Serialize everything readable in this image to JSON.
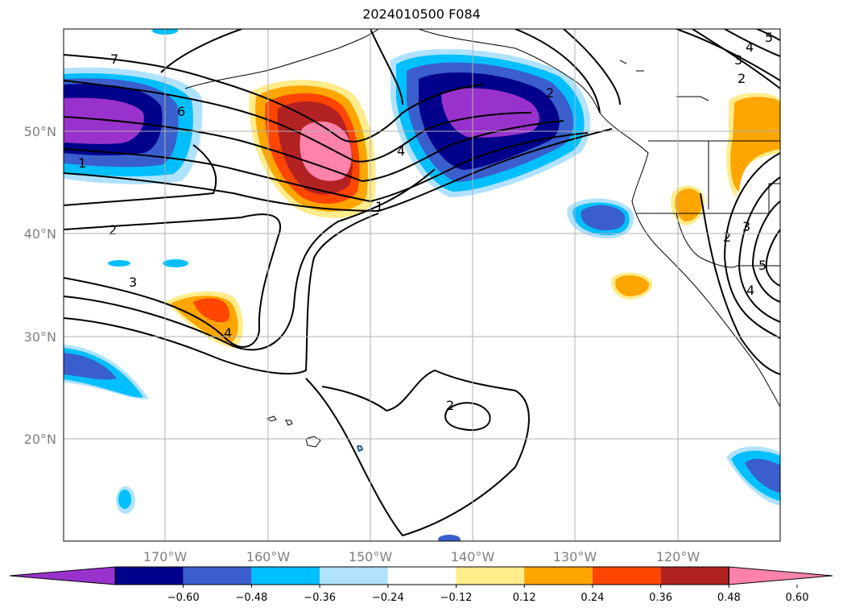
{
  "title": "2024010500 F084",
  "map": {
    "lat_labels": [
      "50°N",
      "40°N",
      "30°N",
      "20°N"
    ],
    "lon_labels": [
      "170°W",
      "160°W",
      "150°W",
      "140°W",
      "130°W",
      "120°W"
    ],
    "contour_labels": [
      "7",
      "6",
      "1",
      "2",
      "3",
      "4",
      "4",
      "1",
      "2",
      "3",
      "4",
      "5",
      "2",
      "2",
      "3",
      "4",
      "5",
      "2"
    ]
  },
  "colorbar": {
    "ticks": [
      "−0.60",
      "−0.48",
      "−0.36",
      "−0.24",
      "−0.12",
      "0.12",
      "0.24",
      "0.36",
      "0.48",
      "0.60"
    ],
    "colors": [
      "#9932cc",
      "#00008b",
      "#3a5fcd",
      "#00bfff",
      "#b0e2ff",
      "#ffffff",
      "#ffec8b",
      "#ffa500",
      "#ff4500",
      "#b22222",
      "#ff82ab"
    ]
  }
}
